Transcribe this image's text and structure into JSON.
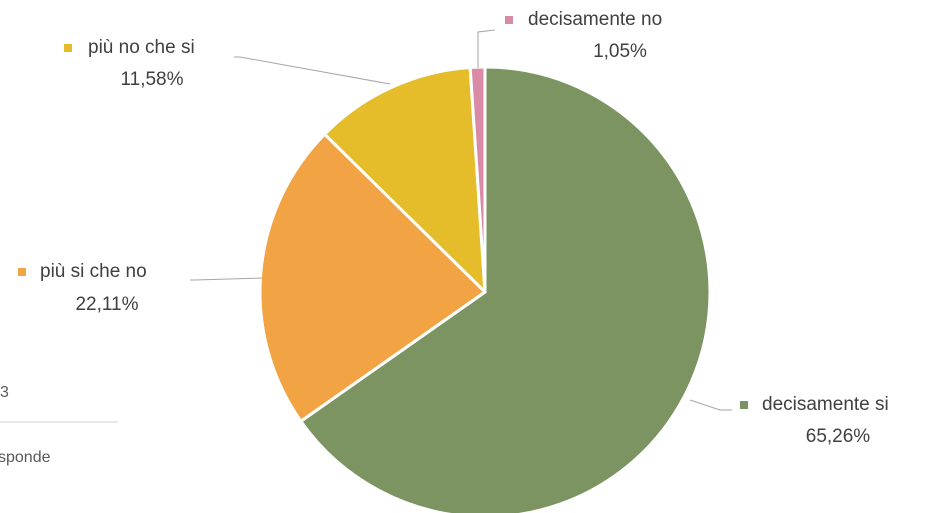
{
  "chart_data": {
    "type": "pie",
    "categories": [
      "decisamente si",
      "più si che no",
      "più no che si",
      "decisamente no"
    ],
    "values": [
      65.26,
      22.11,
      11.58,
      1.05
    ],
    "value_labels": [
      "65,26%",
      "22,11%",
      "11,58%",
      "1,05%"
    ],
    "colors": [
      "#7b9462",
      "#f2a444",
      "#e5bd2b",
      "#d98ba6"
    ]
  },
  "background_text": [
    "3",
    "sponde"
  ]
}
